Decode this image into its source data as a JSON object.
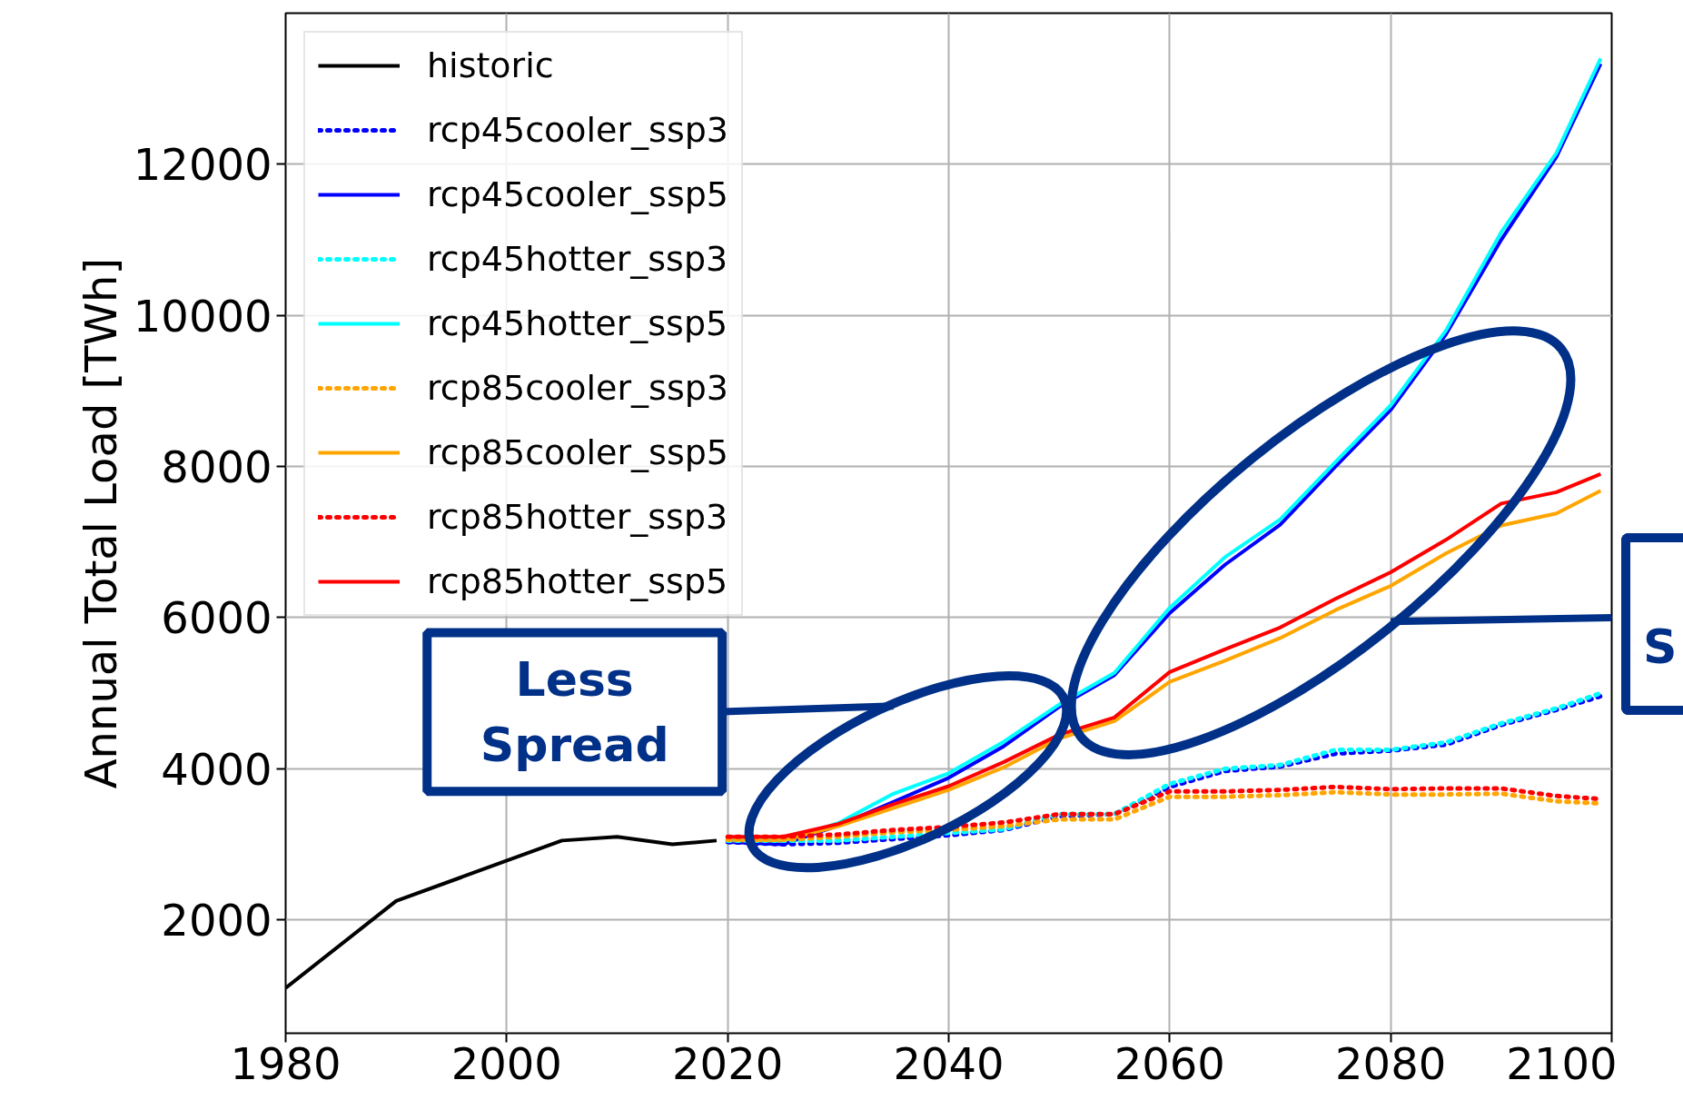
{
  "chart_data": {
    "type": "line",
    "ylabel": "Annual Total Load [TWh]",
    "xlim": [
      1980,
      2100
    ],
    "ylim": [
      500,
      14000
    ],
    "xticks": [
      1980,
      2000,
      2020,
      2040,
      2060,
      2080,
      2100
    ],
    "yticks": [
      2000,
      4000,
      6000,
      8000,
      10000,
      12000
    ],
    "grid": true,
    "legend": "top left",
    "annotations": [
      "Less Spread",
      "S"
    ],
    "series": [
      {
        "name": "historic",
        "color": "#000000",
        "line_style": "solid",
        "x": [
          1980,
          1990,
          2005,
          2010,
          2015,
          2019
        ],
        "values": [
          1100,
          2250,
          3050,
          3100,
          3000,
          3050
        ]
      },
      {
        "name": "rcp45cooler_ssp3",
        "color": "#0000ff",
        "line_style": "dotted",
        "x": [
          2020,
          2025,
          2030,
          2035,
          2040,
          2045,
          2050,
          2055,
          2060,
          2065,
          2070,
          2075,
          2080,
          2085,
          2090,
          2095,
          2099
        ],
        "values": [
          3030,
          3000,
          3020,
          3070,
          3120,
          3190,
          3370,
          3400,
          3760,
          3970,
          4030,
          4200,
          4240,
          4320,
          4580,
          4780,
          4960
        ]
      },
      {
        "name": "rcp45cooler_ssp5",
        "color": "#0000ff",
        "line_style": "solid",
        "x": [
          2020,
          2025,
          2030,
          2035,
          2040,
          2045,
          2050,
          2055,
          2060,
          2065,
          2070,
          2075,
          2080,
          2085,
          2090,
          2095,
          2099
        ],
        "values": [
          3030,
          3000,
          3250,
          3560,
          3880,
          4300,
          4820,
          5240,
          6060,
          6700,
          7230,
          8000,
          8750,
          9750,
          11000,
          12100,
          13330
        ]
      },
      {
        "name": "rcp45hotter_ssp3",
        "color": "#00ffff",
        "line_style": "dotted",
        "x": [
          2020,
          2025,
          2030,
          2035,
          2040,
          2045,
          2050,
          2055,
          2060,
          2065,
          2070,
          2075,
          2080,
          2085,
          2090,
          2095,
          2099
        ],
        "values": [
          3050,
          3050,
          3050,
          3100,
          3150,
          3200,
          3400,
          3400,
          3800,
          4000,
          4050,
          4250,
          4250,
          4350,
          4600,
          4800,
          5000
        ]
      },
      {
        "name": "rcp45hotter_ssp5",
        "color": "#00ffff",
        "line_style": "solid",
        "x": [
          2020,
          2025,
          2030,
          2035,
          2040,
          2045,
          2050,
          2055,
          2060,
          2065,
          2070,
          2075,
          2080,
          2085,
          2090,
          2095,
          2099
        ],
        "values": [
          3070,
          3050,
          3280,
          3670,
          3940,
          4360,
          4850,
          5270,
          6130,
          6800,
          7300,
          8060,
          8810,
          9800,
          11100,
          12150,
          13400
        ]
      },
      {
        "name": "rcp85cooler_ssp3",
        "color": "#ffa500",
        "line_style": "dotted",
        "x": [
          2020,
          2025,
          2030,
          2035,
          2040,
          2045,
          2050,
          2055,
          2060,
          2065,
          2070,
          2075,
          2080,
          2085,
          2090,
          2095,
          2099
        ],
        "values": [
          3060,
          3060,
          3100,
          3160,
          3190,
          3240,
          3330,
          3330,
          3630,
          3630,
          3650,
          3690,
          3660,
          3660,
          3670,
          3570,
          3540
        ]
      },
      {
        "name": "rcp85cooler_ssp5",
        "color": "#ffa500",
        "line_style": "solid",
        "x": [
          2020,
          2025,
          2030,
          2035,
          2040,
          2045,
          2050,
          2055,
          2060,
          2065,
          2070,
          2075,
          2080,
          2085,
          2090,
          2095,
          2099
        ],
        "values": [
          3050,
          3050,
          3240,
          3480,
          3720,
          4020,
          4400,
          4630,
          5150,
          5430,
          5730,
          6100,
          6420,
          6850,
          7220,
          7380,
          7680
        ]
      },
      {
        "name": "rcp85hotter_ssp3",
        "color": "#ff0000",
        "line_style": "dotted",
        "x": [
          2020,
          2025,
          2030,
          2035,
          2040,
          2045,
          2050,
          2055,
          2060,
          2065,
          2070,
          2075,
          2080,
          2085,
          2090,
          2095,
          2099
        ],
        "values": [
          3100,
          3100,
          3130,
          3190,
          3230,
          3290,
          3400,
          3400,
          3700,
          3700,
          3720,
          3760,
          3730,
          3740,
          3740,
          3640,
          3600
        ]
      },
      {
        "name": "rcp85hotter_ssp5",
        "color": "#ff0000",
        "line_style": "solid",
        "x": [
          2020,
          2025,
          2030,
          2035,
          2040,
          2045,
          2050,
          2055,
          2060,
          2065,
          2070,
          2075,
          2080,
          2085,
          2090,
          2095,
          2099
        ],
        "values": [
          3100,
          3100,
          3270,
          3530,
          3770,
          4090,
          4450,
          4680,
          5280,
          5580,
          5870,
          6250,
          6600,
          7030,
          7510,
          7660,
          7900
        ]
      }
    ]
  }
}
